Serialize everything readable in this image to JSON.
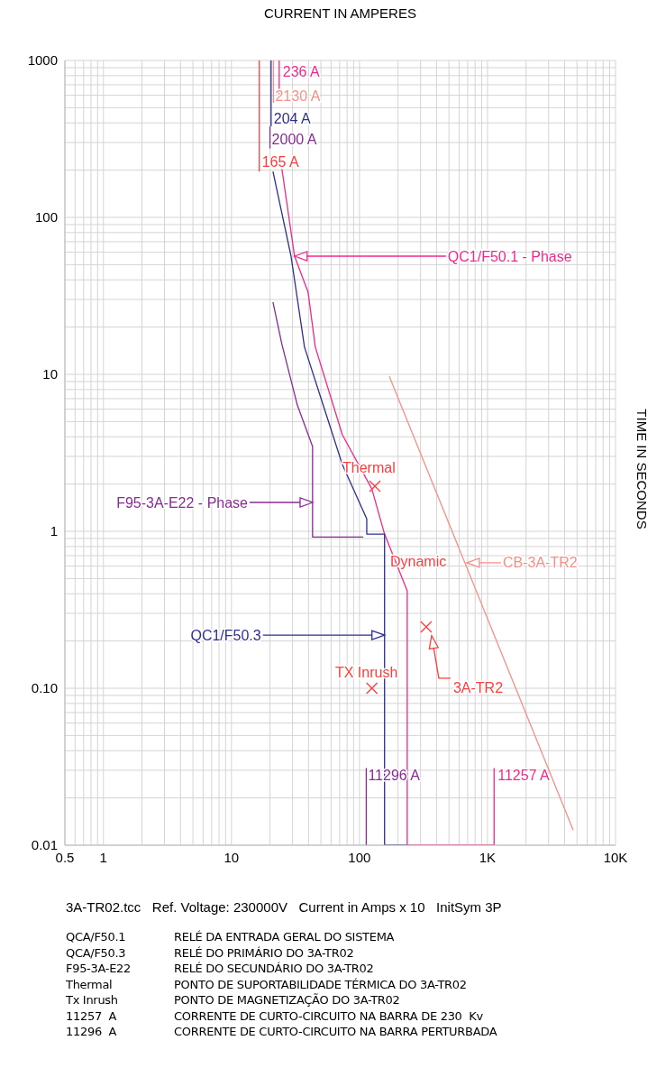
{
  "chart_data": {
    "type": "line",
    "xlabel": "CURRENT IN AMPERES",
    "ylabel": "TIME IN SECONDS",
    "log": "xy",
    "grid": true,
    "xlim": [
      0.5,
      10000
    ],
    "xticks": [
      0.5,
      1,
      10,
      100,
      {
        "value": 1000,
        "label": "1K"
      },
      {
        "value": 10000,
        "label": "10K"
      }
    ],
    "ylim": [
      0.01,
      1000
    ],
    "yticks": [
      0.01,
      {
        "value": 0.1,
        "label": "0.10"
      },
      1,
      10,
      100,
      1000
    ],
    "series": [
      {
        "color": "#f0288c",
        "x": [
          24.8,
          31.1,
          39.7,
          45.2,
          73.5,
          125,
          157,
          236,
          236,
          1125.7,
          1125.7
        ],
        "values": [
          203,
          56.6,
          33.3,
          14.9,
          4.12,
          1.86,
          0.96,
          0.418,
          0.01,
          0.01,
          0.031
        ]
      },
      {
        "color": "#2e2e8f",
        "x": [
          21.1,
          29.2,
          37.2,
          55.7,
          73.5,
          114,
          114,
          157,
          157,
          236
        ],
        "values": [
          196,
          56.6,
          14.9,
          5.37,
          2.66,
          1.2,
          0.96,
          0.96,
          0.01,
          0.01
        ]
      },
      {
        "color": "#8a2a96",
        "x": [
          21.1,
          24.8,
          32.7,
          43,
          43,
          107
        ],
        "values": [
          28.9,
          15.5,
          6.37,
          3.47,
          0.92,
          0.92
        ]
      },
      {
        "color": "#f78e86",
        "x": [
          171,
          4670
        ],
        "values": [
          9.7,
          0.0125
        ]
      },
      {
        "color": "#f0288c",
        "x": [
          23.6,
          23.6
        ],
        "values": [
          1000,
          589
        ]
      },
      {
        "color": "#f78e86",
        "x": [
          21.3,
          21.3
        ],
        "values": [
          1000,
          537
        ]
      },
      {
        "color": "#2e2e8f",
        "x": [
          20.4,
          20.4
        ],
        "values": [
          1000,
          380
        ]
      },
      {
        "color": "#8a2a96",
        "x": [
          20,
          20
        ],
        "values": [
          380,
          275
        ]
      },
      {
        "color": "#ff3b3b",
        "x": [
          16.5,
          16.5
        ],
        "values": [
          1000,
          196
        ]
      },
      {
        "color": "#8a2a96",
        "x": [
          112.96,
          112.96
        ],
        "values": [
          0.01,
          0.031
        ]
      },
      {
        "type": "scatter",
        "marker": "cross",
        "color": "#ff3b3b",
        "x": [
          132,
          125,
          332
        ],
        "values": [
          1.94,
          0.1,
          0.246
        ]
      }
    ],
    "annotations": [
      {
        "text": "236 A",
        "x": 23.6,
        "y": 1000
      },
      {
        "text": "2130 A",
        "x": 21.3,
        "y": 537
      },
      {
        "text": "204 A",
        "x": 20.4,
        "y": 380
      },
      {
        "text": "2000 A",
        "x": 20,
        "y": 275
      },
      {
        "text": "165 A",
        "x": 16.5,
        "y": 196
      },
      {
        "text": "QC1/F50.1 - Phase",
        "x": 31.1,
        "y": 56.6
      },
      {
        "text": "Thermal",
        "x": 132,
        "y": 1.94
      },
      {
        "text": "CB-3A-TR2",
        "x": 689,
        "y": 0.63
      },
      {
        "text": "QC1/F50.3",
        "x": 157,
        "y": 0.218
      },
      {
        "text": "TX Inrush",
        "x": 125,
        "y": 0.1
      },
      {
        "text": "11296 A",
        "x": 112.96,
        "y": 0.031
      },
      {
        "text": "11257 A",
        "x": 1125.7,
        "y": 0.031
      },
      {
        "text": "3A-TR2",
        "x": 366,
        "y": 0.216
      },
      "F95-3A-E22 - Phase",
      "Dynamic",
      "3A-TR02.tcc   Ref. Voltage: 230000V   Current in Amps x 10   InitSym 3P",
      "QCA/F50.1",
      "RELÉ DA ENTRADA GERAL DO SISTEMA",
      "QCA/F50.3",
      "RELÉ DO PRIMÁRIO DO 3A-TR02",
      "F95-3A-E22",
      "RELÉ DO SECUNDÁRIO DO 3A-TR02",
      "Thermal",
      "PONTO DE SUPORTABILIDADE TÉRMICA DO 3A-TR02",
      "Tx Inrush",
      "PONTO DE MAGNETIZAÇÃO DO 3A-TR02",
      "11257  A",
      "CORRENTE DE CURTO-CIRCUITO NA BARRA DE 230  Kv",
      "11296  A",
      "CORRENTE DE CURTO-CIRCUITO NA BARRA PERTURBADA"
    ]
  }
}
